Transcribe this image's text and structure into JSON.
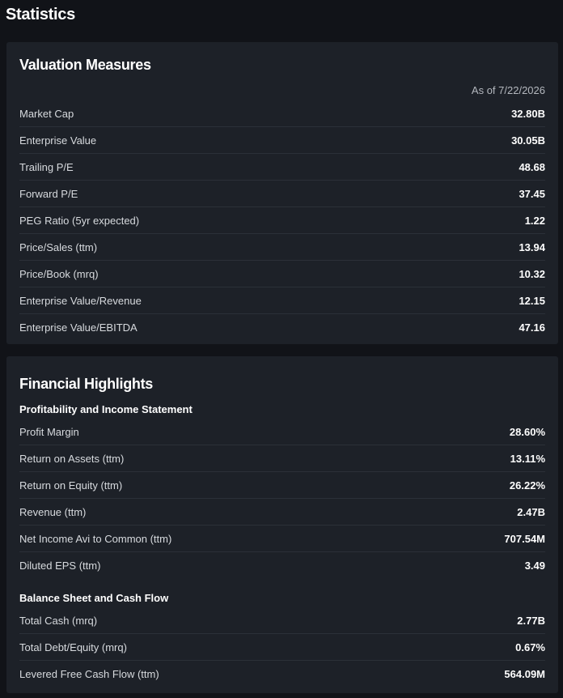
{
  "header": {
    "title": "Statistics"
  },
  "valuation": {
    "title": "Valuation Measures",
    "as_of": "As of 7/22/2026",
    "rows": [
      [
        "Market Cap",
        "32.80B"
      ],
      [
        "Enterprise Value",
        "30.05B"
      ],
      [
        "Trailing P/E",
        "48.68"
      ],
      [
        "Forward P/E",
        "37.45"
      ],
      [
        "PEG Ratio (5yr expected)",
        "1.22"
      ],
      [
        "Price/Sales (ttm)",
        "13.94"
      ],
      [
        "Price/Book (mrq)",
        "10.32"
      ],
      [
        "Enterprise Value/Revenue",
        "12.15"
      ],
      [
        "Enterprise Value/EBITDA",
        "47.16"
      ]
    ]
  },
  "financial": {
    "title": "Financial Highlights",
    "sections": [
      {
        "title": "Profitability and Income Statement",
        "rows": [
          [
            "Profit Margin",
            "28.60%"
          ],
          [
            "Return on Assets (ttm)",
            "13.11%"
          ],
          [
            "Return on Equity (ttm)",
            "26.22%"
          ],
          [
            "Revenue (ttm)",
            "2.47B"
          ],
          [
            "Net Income Avi to Common (ttm)",
            "707.54M"
          ],
          [
            "Diluted EPS (ttm)",
            "3.49"
          ]
        ]
      },
      {
        "title": "Balance Sheet and Cash Flow",
        "rows": [
          [
            "Total Cash (mrq)",
            "2.77B"
          ],
          [
            "Total Debt/Equity (mrq)",
            "0.67%"
          ],
          [
            "Levered Free Cash Flow (ttm)",
            "564.09M"
          ]
        ]
      }
    ]
  }
}
